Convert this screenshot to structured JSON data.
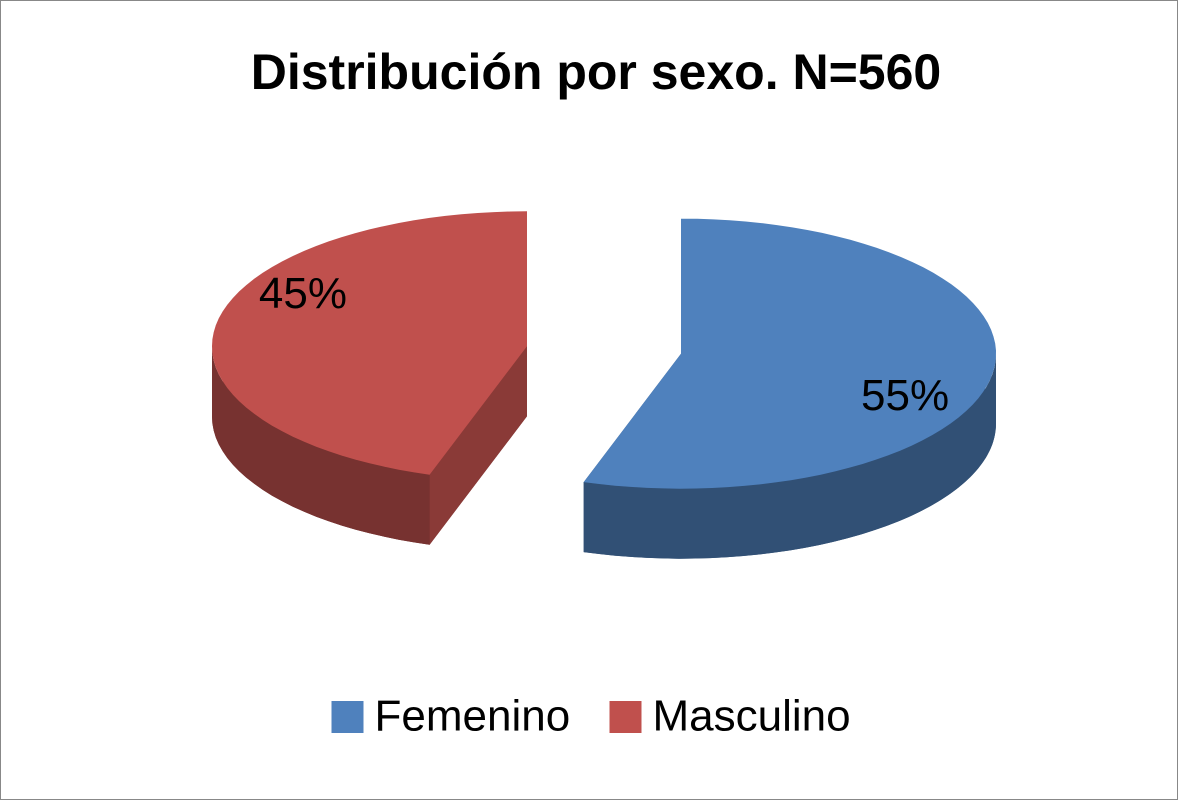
{
  "chart_data": {
    "type": "pie3d",
    "title": "Distribución por sexo. N=560",
    "categories": [
      "Femenino",
      "Masculino"
    ],
    "values": [
      55,
      45
    ],
    "value_labels": [
      "55%",
      "45%"
    ],
    "colors": [
      "#4f81bd",
      "#c0504d"
    ],
    "legend": "bottom"
  }
}
